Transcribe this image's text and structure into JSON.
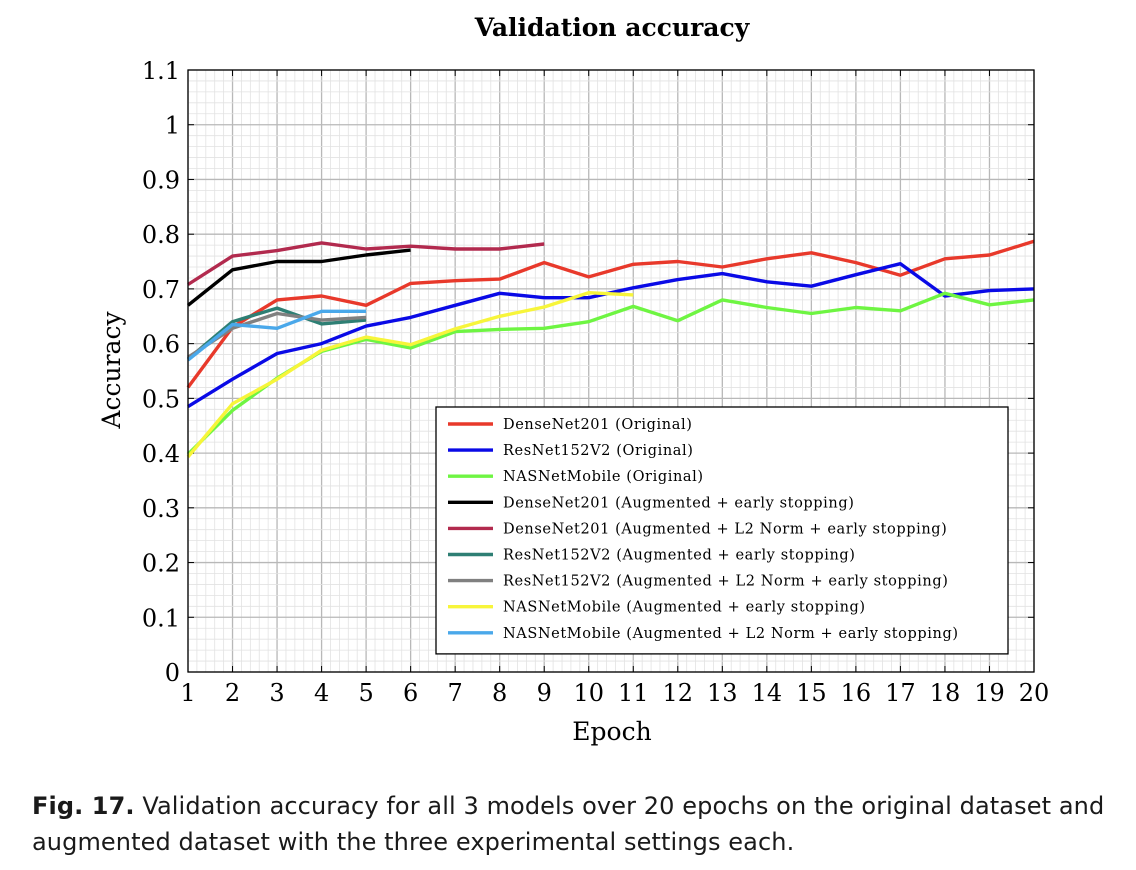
{
  "chart_data": {
    "type": "line",
    "title": "Validation accuracy",
    "xlabel": "Epoch",
    "ylabel": "Accuracy",
    "xlim": [
      1,
      20
    ],
    "ylim": [
      0,
      1.1
    ],
    "x_ticks": [
      "1",
      "2",
      "3",
      "4",
      "5",
      "6",
      "7",
      "8",
      "9",
      "10",
      "11",
      "12",
      "13",
      "14",
      "15",
      "16",
      "17",
      "18",
      "19",
      "20"
    ],
    "y_ticks": [
      "0",
      "0.1",
      "0.2",
      "0.3",
      "0.4",
      "0.5",
      "0.6",
      "0.7",
      "0.8",
      "0.9",
      "1",
      "1.1"
    ],
    "grid": true,
    "legend_position": "bottom-right",
    "series": [
      {
        "name": "DenseNet201 (Original)",
        "color": "#e8392b",
        "x": [
          1,
          2,
          3,
          4,
          5,
          6,
          7,
          8,
          9,
          10,
          11,
          12,
          13,
          14,
          15,
          16,
          17,
          18,
          19,
          20
        ],
        "values": [
          0.52,
          0.63,
          0.68,
          0.687,
          0.67,
          0.71,
          0.715,
          0.718,
          0.748,
          0.722,
          0.745,
          0.75,
          0.74,
          0.755,
          0.766,
          0.748,
          0.725,
          0.755,
          0.762,
          0.787
        ]
      },
      {
        "name": "ResNet152V2 (Original)",
        "color": "#0a0ae6",
        "x": [
          1,
          2,
          3,
          4,
          5,
          6,
          7,
          8,
          9,
          10,
          11,
          12,
          13,
          14,
          15,
          16,
          17,
          18,
          19,
          20
        ],
        "values": [
          0.485,
          0.535,
          0.582,
          0.6,
          0.632,
          0.648,
          0.67,
          0.692,
          0.684,
          0.684,
          0.702,
          0.717,
          0.728,
          0.713,
          0.705,
          0.726,
          0.746,
          0.687,
          0.697,
          0.7
        ]
      },
      {
        "name": "NASNetMobile (Original)",
        "color": "#6ef542",
        "x": [
          1,
          2,
          3,
          4,
          5,
          6,
          7,
          8,
          9,
          10,
          11,
          12,
          13,
          14,
          15,
          16,
          17,
          18,
          19,
          20
        ],
        "values": [
          0.398,
          0.478,
          0.537,
          0.586,
          0.608,
          0.592,
          0.622,
          0.626,
          0.628,
          0.64,
          0.668,
          0.642,
          0.68,
          0.666,
          0.655,
          0.666,
          0.66,
          0.692,
          0.671,
          0.68
        ]
      },
      {
        "name": "DenseNet201 (Augmented + early stopping)",
        "color": "#000000",
        "x": [
          1,
          2,
          3,
          4,
          5,
          6
        ],
        "values": [
          0.67,
          0.735,
          0.75,
          0.75,
          0.762,
          0.771
        ]
      },
      {
        "name": "DenseNet201 (Augmented + L2 Norm + early stopping)",
        "color": "#b22a4e",
        "x": [
          1,
          2,
          3,
          4,
          5,
          6,
          7,
          8,
          9
        ],
        "values": [
          0.708,
          0.76,
          0.77,
          0.784,
          0.773,
          0.778,
          0.773,
          0.773,
          0.782
        ]
      },
      {
        "name": "ResNet152V2 (Augmented + early stopping)",
        "color": "#2e7f74",
        "x": [
          1,
          2,
          3,
          4,
          5
        ],
        "values": [
          0.572,
          0.64,
          0.665,
          0.636,
          0.643
        ]
      },
      {
        "name": "ResNet152V2 (Augmented + L2 Norm + early stopping)",
        "color": "#808080",
        "x": [
          1,
          2,
          3,
          4,
          5
        ],
        "values": [
          0.575,
          0.628,
          0.655,
          0.643,
          0.648
        ]
      },
      {
        "name": "NASNetMobile (Augmented + early stopping)",
        "color": "#f7f53a",
        "x": [
          1,
          2,
          3,
          4,
          5,
          6,
          7,
          8,
          9,
          10,
          11
        ],
        "values": [
          0.393,
          0.49,
          0.535,
          0.588,
          0.612,
          0.598,
          0.627,
          0.65,
          0.667,
          0.693,
          0.689
        ]
      },
      {
        "name": "NASNetMobile (Augmented + L2 Norm + early stopping)",
        "color": "#4aa8ea",
        "x": [
          1,
          2,
          3,
          4,
          5
        ],
        "values": [
          0.57,
          0.635,
          0.628,
          0.659,
          0.659
        ]
      }
    ]
  },
  "caption": {
    "label": "Fig. 17.",
    "text": "Validation accuracy for all 3 models over 20 epochs on the original dataset and augmented dataset with the three experimental settings each."
  }
}
